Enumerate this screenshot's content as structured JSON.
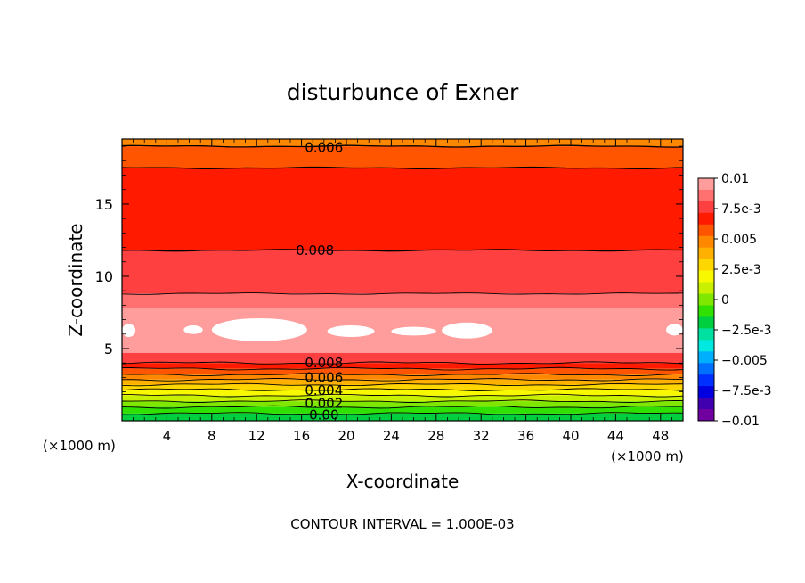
{
  "chart_data": {
    "type": "heatmap",
    "title": "disturbunce of Exner",
    "xlabel": "X-coordinate",
    "ylabel": "Z-coordinate",
    "x_unit_left": "(×1000 m)",
    "x_unit_right": "(×1000 m)",
    "footer": "CONTOUR INTERVAL = 1.000E-03",
    "xlim": [
      0,
      50
    ],
    "ylim": [
      0,
      19.5
    ],
    "xticks": [
      4,
      8,
      12,
      16,
      20,
      24,
      28,
      32,
      36,
      40,
      44,
      48
    ],
    "xtick_labels": [
      "4",
      "8",
      "12",
      "16",
      "20",
      "24",
      "28",
      "32",
      "36",
      "40",
      "44",
      "48"
    ],
    "yticks": [
      5,
      10,
      15
    ],
    "ytick_labels": [
      "5",
      "10",
      "15"
    ],
    "colorbar": {
      "min": -0.01,
      "max": 0.01,
      "labels": [
        "0.01",
        "7.5e-3",
        "0.005",
        "2.5e-3",
        "0",
        "−2.5e-3",
        "−0.005",
        "−7.5e-3",
        "−0.01"
      ],
      "colors": [
        "#ff9c9c",
        "#ff7070",
        "#ff4040",
        "#ff1a00",
        "#ff5500",
        "#ff8800",
        "#ffb000",
        "#ffd700",
        "#f8f800",
        "#c8f000",
        "#80e800",
        "#30e000",
        "#00d040",
        "#00e0a0",
        "#00e8e0",
        "#00b0ff",
        "#0070ff",
        "#0030ff",
        "#0000e0",
        "#4000b0",
        "#7000a0"
      ]
    },
    "contour_labels": [
      {
        "text": "0.006",
        "x": 18.0,
        "z": 18.9
      },
      {
        "text": "0.008",
        "x": 17.2,
        "z": 11.8
      },
      {
        "text": "0.008",
        "x": 18.0,
        "z": 4.0
      },
      {
        "text": "0.006",
        "x": 18.0,
        "z": 3.0
      },
      {
        "text": "0.004",
        "x": 18.0,
        "z": 2.1
      },
      {
        "text": "0.002",
        "x": 18.0,
        "z": 1.2
      },
      {
        "text": "0.00",
        "x": 18.0,
        "z": 0.4
      }
    ],
    "profile": [
      {
        "z0": 19.0,
        "z1": 19.5,
        "color": "#ff8800"
      },
      {
        "z0": 17.5,
        "z1": 19.0,
        "color": "#ff5500"
      },
      {
        "z0": 11.8,
        "z1": 17.5,
        "color": "#ff1a00"
      },
      {
        "z0": 8.8,
        "z1": 11.8,
        "color": "#ff4040"
      },
      {
        "z0": 7.8,
        "z1": 8.8,
        "color": "#ff7070"
      },
      {
        "z0": 4.7,
        "z1": 7.8,
        "color": "#ff9c9c"
      },
      {
        "z0": 4.0,
        "z1": 4.7,
        "color": "#ff4040"
      },
      {
        "z0": 3.6,
        "z1": 4.0,
        "color": "#ff1a00"
      },
      {
        "z0": 3.2,
        "z1": 3.6,
        "color": "#ff5500"
      },
      {
        "z0": 2.85,
        "z1": 3.2,
        "color": "#ff8800"
      },
      {
        "z0": 2.5,
        "z1": 2.85,
        "color": "#ffb000"
      },
      {
        "z0": 2.15,
        "z1": 2.5,
        "color": "#ffd700"
      },
      {
        "z0": 1.75,
        "z1": 2.15,
        "color": "#f8f800"
      },
      {
        "z0": 1.35,
        "z1": 1.75,
        "color": "#c8f000"
      },
      {
        "z0": 0.95,
        "z1": 1.35,
        "color": "#80e800"
      },
      {
        "z0": 0.5,
        "z1": 0.95,
        "color": "#30e000"
      },
      {
        "z0": 0.0,
        "z1": 0.5,
        "color": "#00d040"
      }
    ],
    "contour_lines_z": [
      19.0,
      17.5,
      11.8,
      8.8,
      4.0,
      3.6,
      3.2,
      2.85,
      2.5,
      2.15,
      1.75,
      1.35,
      0.95,
      0.5
    ],
    "white_patches": [
      {
        "x0": 0.0,
        "x1": 1.2,
        "z0": 5.8,
        "z1": 6.7
      },
      {
        "x0": 5.5,
        "x1": 7.2,
        "z0": 6.0,
        "z1": 6.6
      },
      {
        "x0": 8.0,
        "x1": 16.5,
        "z0": 5.5,
        "z1": 7.1
      },
      {
        "x0": 18.3,
        "x1": 22.5,
        "z0": 5.8,
        "z1": 6.6
      },
      {
        "x0": 24.0,
        "x1": 28.0,
        "z0": 5.9,
        "z1": 6.5
      },
      {
        "x0": 28.5,
        "x1": 33.0,
        "z0": 5.7,
        "z1": 6.8
      },
      {
        "x0": 48.5,
        "x1": 50.0,
        "z0": 5.9,
        "z1": 6.7
      }
    ]
  }
}
